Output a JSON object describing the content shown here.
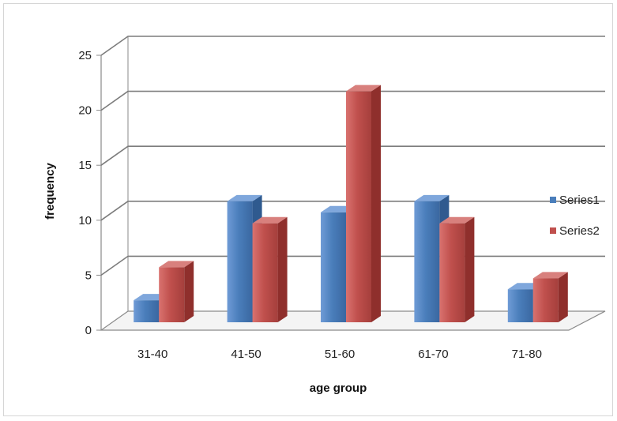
{
  "chart_data": {
    "type": "bar",
    "categories": [
      "31-40",
      "41-50",
      "51-60",
      "61-70",
      "71-80"
    ],
    "series": [
      {
        "name": "Series1",
        "values": [
          2,
          11,
          10,
          11,
          3
        ],
        "color": "#4a7ebb"
      },
      {
        "name": "Series2",
        "values": [
          5,
          9,
          21,
          9,
          4
        ],
        "color": "#c0504d"
      }
    ],
    "xlabel": "age group",
    "ylabel": "frequency",
    "ylim": [
      0,
      25
    ],
    "yticks": [
      "0",
      "5",
      "10",
      "15",
      "20",
      "25"
    ],
    "grid": true,
    "legend_position": "right",
    "style": "3d-clustered-column"
  }
}
